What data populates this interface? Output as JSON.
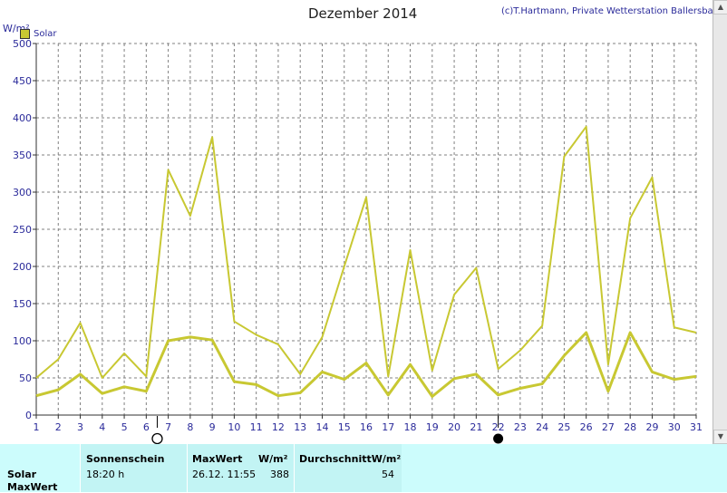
{
  "header": {
    "title": "Dezember 2014",
    "credit": "(c)T.Hartmann, Private Wetterstation Ballersbach",
    "unit": "W/m²"
  },
  "legend": {
    "label": "Solar",
    "color": "#c8c832"
  },
  "chart_data": {
    "type": "line",
    "x": [
      1,
      2,
      3,
      4,
      5,
      6,
      7,
      8,
      9,
      10,
      11,
      12,
      13,
      14,
      15,
      16,
      17,
      18,
      19,
      20,
      21,
      22,
      23,
      24,
      25,
      26,
      27,
      28,
      29,
      30,
      31
    ],
    "series": [
      {
        "name": "Solar",
        "role": "max",
        "color": "#c8c832",
        "values": [
          50,
          75,
          124,
          50,
          83,
          52,
          330,
          268,
          374,
          126,
          108,
          95,
          55,
          105,
          200,
          293,
          52,
          222,
          60,
          162,
          198,
          62,
          87,
          120,
          348,
          388,
          68,
          265,
          320,
          118,
          111
        ]
      },
      {
        "name": "Solar",
        "role": "avg",
        "color": "#c8c832",
        "values": [
          26,
          34,
          55,
          29,
          38,
          32,
          100,
          105,
          101,
          45,
          41,
          26,
          30,
          58,
          48,
          70,
          27,
          68,
          25,
          49,
          55,
          27,
          36,
          42,
          80,
          111,
          32,
          111,
          58,
          48,
          52
        ]
      }
    ],
    "ylim": [
      0,
      500
    ],
    "yticks": [
      0,
      50,
      100,
      150,
      200,
      250,
      300,
      350,
      400,
      450,
      500
    ],
    "xticks": [
      "1",
      "2",
      "3",
      "4",
      "5",
      "6",
      "7",
      "8",
      "9",
      "10",
      "11",
      "12",
      "13",
      "14",
      "15",
      "16",
      "17",
      "18",
      "19",
      "20",
      "21",
      "22",
      "23",
      "24",
      "25",
      "26",
      "27",
      "28",
      "29",
      "30",
      "31"
    ],
    "grid": true,
    "moon_phases": [
      {
        "day": 6.5,
        "phase": "full-moon"
      },
      {
        "day": 22,
        "phase": "new-moon"
      }
    ]
  },
  "stats": {
    "row_labels": [
      "Solar",
      "MaxWert"
    ],
    "sun_header": "Sonnenschein",
    "sun_value": "18:20 h",
    "max_header": "MaxWert",
    "max_unit": "W/m²",
    "max_time": "26.12.  11:55",
    "max_value": "388",
    "avg_header": "DurchschnittW/m²",
    "avg_value": "54"
  }
}
